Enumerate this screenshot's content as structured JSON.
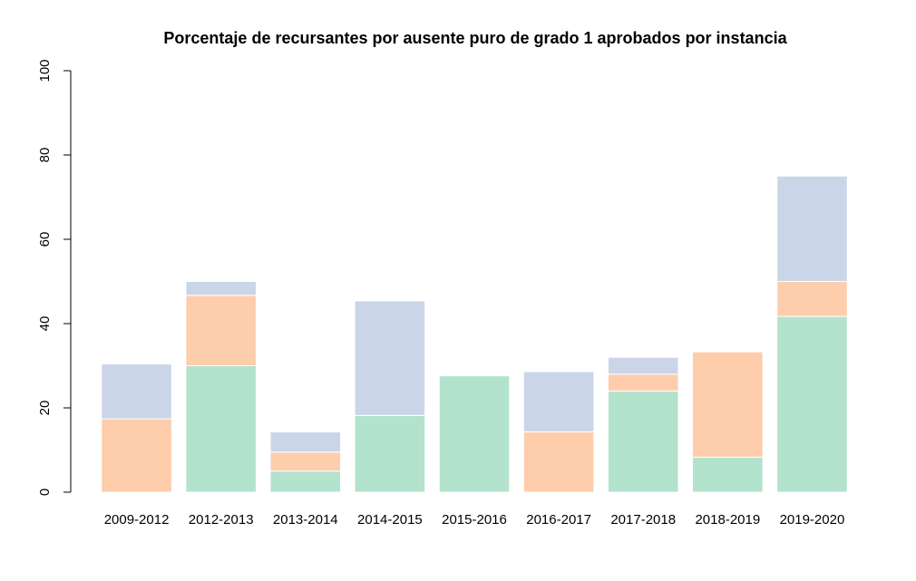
{
  "chart_data": {
    "type": "bar",
    "stacked": true,
    "title": "Porcentaje de recursantes por ausente puro de grado 1 aprobados por instancia",
    "xlabel": "",
    "ylabel": "",
    "ylim": [
      0,
      100
    ],
    "yticks": [
      0,
      20,
      40,
      60,
      80,
      100
    ],
    "grid": false,
    "categories": [
      "2009-2012",
      "2012-2013",
      "2013-2014",
      "2014-2015",
      "2015-2016",
      "2016-2017",
      "2017-2018",
      "2018-2019",
      "2019-2020"
    ],
    "series": [
      {
        "color": "#b3e2cd",
        "values": [
          0,
          30.0,
          5.0,
          18.2,
          27.6,
          0,
          24.0,
          8.3,
          41.7
        ]
      },
      {
        "color": "#fdcdac",
        "values": [
          17.4,
          16.7,
          4.5,
          0,
          0,
          14.3,
          4.0,
          25.0,
          8.3
        ]
      },
      {
        "color": "#cbd5e8",
        "values": [
          13.0,
          3.3,
          4.8,
          27.2,
          0,
          14.3,
          4.0,
          0,
          25.0
        ]
      }
    ]
  }
}
